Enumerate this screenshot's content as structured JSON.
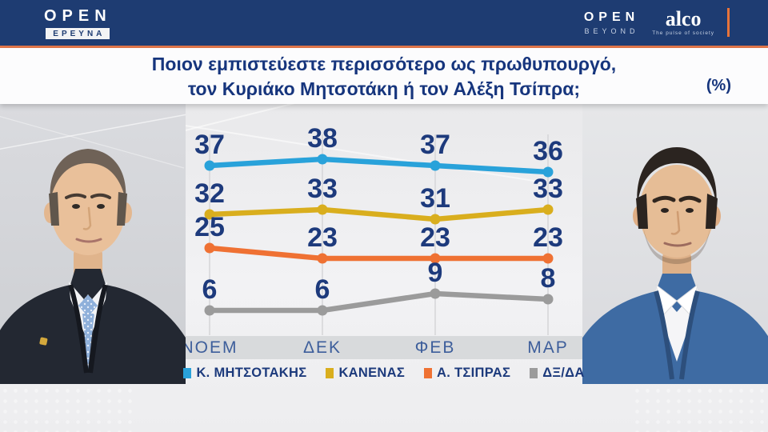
{
  "header": {
    "channel_logo": {
      "text": "OPEN",
      "sub": "ΕΡΕΥΝΑ"
    },
    "beyond_logo": {
      "text": "OPEN",
      "sub": "BEYOND"
    },
    "alco_logo": {
      "text": "alco",
      "tagline": "The pulse of society"
    }
  },
  "title": {
    "line1": "Ποιον εμπιστεύεστε περισσότερο ως πρωθυπουργό,",
    "line2": "τον Κυριάκο Μητσοτάκη ή τον Αλέξη Τσίπρα;",
    "unit_label": "(%)"
  },
  "chart_data": {
    "type": "line",
    "title": "Ποιον εμπιστεύεστε περισσότερο ως πρωθυπουργό, τον Κυριάκο Μητσοτάκη ή τον Αλέξη Τσίπρα;",
    "unit": "%",
    "categories": [
      "ΝΟΕΜ",
      "ΔΕΚ",
      "ΦΕΒ",
      "ΜΑΡ"
    ],
    "series": [
      {
        "name": "Κ. ΜΗΤΣΟΤΑΚΗΣ",
        "color": "#29a2da",
        "values": [
          37,
          38,
          37,
          36
        ]
      },
      {
        "name": "ΚΑΝΕΝΑΣ",
        "color": "#d9ae1e",
        "values": [
          32,
          33,
          31,
          33
        ]
      },
      {
        "name": "Α. ΤΣΙΠΡΑΣ",
        "color": "#ef7133",
        "values": [
          25,
          23,
          23,
          23
        ]
      },
      {
        "name": "ΔΞ/ΔΑ",
        "color": "#9b9b9b",
        "values": [
          6,
          6,
          9,
          8
        ]
      }
    ],
    "data_labels": true,
    "legend_position": "bottom",
    "grid": "faint-vertical",
    "label_color": "#1d3a7c",
    "axis_label_color": "#3d5e9b"
  },
  "portraits": {
    "left_alt": "Κυριάκος Μητσοτάκης",
    "right_alt": "Αλέξης Τσίπρας"
  }
}
